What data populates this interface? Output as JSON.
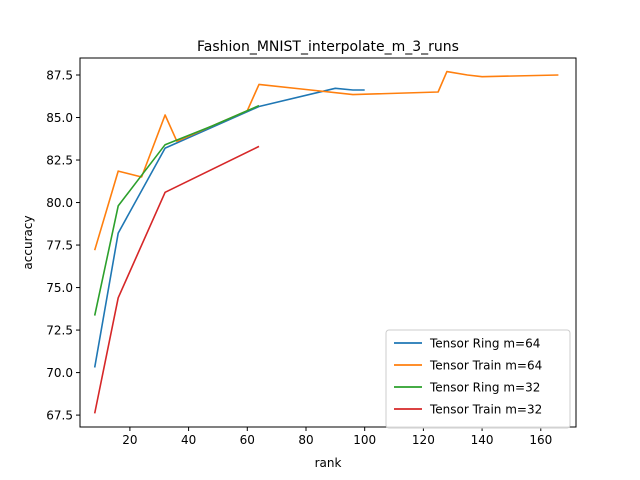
{
  "chart_data": {
    "type": "line",
    "title": "Fashion_MNIST_interpolate_m_3_runs",
    "xlabel": "rank",
    "ylabel": "accuracy",
    "xlim": [
      3,
      172
    ],
    "ylim": [
      66.8,
      88.5
    ],
    "x_ticks": [
      20,
      40,
      60,
      80,
      100,
      120,
      140,
      160
    ],
    "y_ticks": [
      67.5,
      70.0,
      72.5,
      75.0,
      77.5,
      80.0,
      82.5,
      85.0,
      87.5
    ],
    "grid": false,
    "legend_position": "lower-right",
    "series": [
      {
        "name": "Tensor Ring m=64",
        "color": "#1f77b4",
        "points": [
          [
            8,
            70.3
          ],
          [
            16,
            78.2
          ],
          [
            32,
            83.2
          ],
          [
            64,
            85.65
          ],
          [
            90,
            86.72
          ],
          [
            96,
            86.62
          ],
          [
            100,
            86.62
          ]
        ]
      },
      {
        "name": "Tensor Train m=64",
        "color": "#ff7f0e",
        "points": [
          [
            8,
            77.2
          ],
          [
            16,
            81.85
          ],
          [
            24,
            81.5
          ],
          [
            32,
            85.15
          ],
          [
            36,
            83.6
          ],
          [
            60,
            85.4
          ],
          [
            64,
            86.95
          ],
          [
            80,
            86.65
          ],
          [
            96,
            86.35
          ],
          [
            125,
            86.5
          ],
          [
            128,
            87.7
          ],
          [
            135,
            87.5
          ],
          [
            140,
            87.4
          ],
          [
            166,
            87.5
          ]
        ]
      },
      {
        "name": "Tensor Ring m=32",
        "color": "#2ca02c",
        "points": [
          [
            8,
            73.35
          ],
          [
            16,
            79.8
          ],
          [
            24,
            81.6
          ],
          [
            32,
            83.4
          ],
          [
            48,
            84.5
          ],
          [
            64,
            85.7
          ]
        ]
      },
      {
        "name": "Tensor Train m=32",
        "color": "#d62728",
        "points": [
          [
            8,
            67.6
          ],
          [
            16,
            74.4
          ],
          [
            32,
            80.6
          ],
          [
            64,
            83.3
          ]
        ]
      }
    ]
  }
}
